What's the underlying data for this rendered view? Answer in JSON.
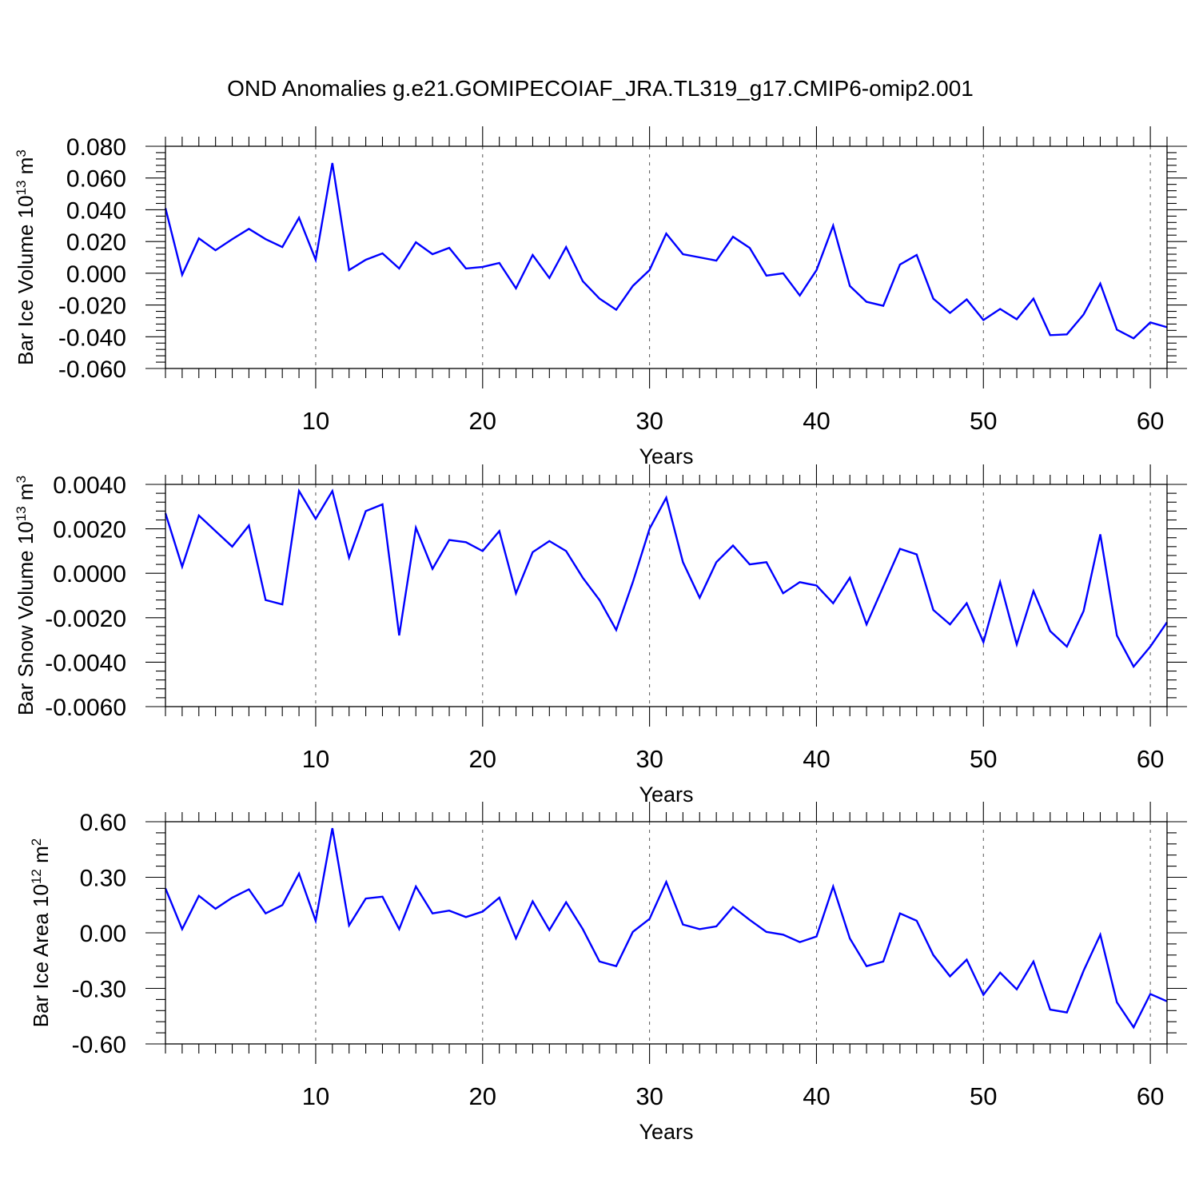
{
  "title": "OND Anomalies g.e21.GOMIPECOIAF_JRA.TL319_g17.CMIP6-omip2.001",
  "line_color": "#0000ff",
  "chart_data": [
    {
      "type": "line",
      "ylabel": "Bar Ice Volume 10",
      "ylabel_exp": "13",
      "ylabel_unit": " m",
      "ylabel_unit_exp": "3",
      "xlabel": "Years",
      "xlim": [
        1,
        61
      ],
      "ylim": [
        -0.06,
        0.08
      ],
      "xticks": [
        10,
        20,
        30,
        40,
        50,
        60
      ],
      "yticks": [
        -0.06,
        -0.04,
        -0.02,
        0.0,
        0.02,
        0.04,
        0.06,
        0.08
      ],
      "ytick_labels": [
        "-0.060",
        "-0.040",
        "-0.020",
        "0.000",
        "0.020",
        "0.040",
        "0.060",
        "0.080"
      ],
      "grid": "dashed vertical lines at x tick positions",
      "x": [
        1,
        2,
        3,
        4,
        5,
        6,
        7,
        8,
        9,
        10,
        11,
        12,
        13,
        14,
        15,
        16,
        17,
        18,
        19,
        20,
        21,
        22,
        23,
        24,
        25,
        26,
        27,
        28,
        29,
        30,
        31,
        32,
        33,
        34,
        35,
        36,
        37,
        38,
        39,
        40,
        41,
        42,
        43,
        44,
        45,
        46,
        47,
        48,
        49,
        50,
        51,
        52,
        53,
        54,
        55,
        56,
        57,
        58,
        59,
        60,
        61
      ],
      "values": [
        0.041,
        -0.001,
        0.022,
        0.0145,
        0.0215,
        0.028,
        0.0215,
        0.0165,
        0.035,
        0.0085,
        0.0695,
        0.002,
        0.0085,
        0.0125,
        0.003,
        0.0195,
        0.012,
        0.016,
        0.003,
        0.004,
        0.0065,
        -0.0095,
        0.0115,
        -0.003,
        0.0165,
        -0.005,
        -0.016,
        -0.023,
        -0.008,
        0.002,
        0.025,
        0.012,
        0.01,
        0.008,
        0.023,
        0.016,
        -0.0015,
        0.0,
        -0.014,
        0.002,
        0.03,
        -0.008,
        -0.018,
        -0.0205,
        0.0055,
        0.0115,
        -0.016,
        -0.025,
        -0.0165,
        -0.0295,
        -0.0225,
        -0.029,
        -0.016,
        -0.039,
        -0.0385,
        -0.026,
        -0.0065,
        -0.0355,
        -0.041,
        -0.031,
        -0.034
      ]
    },
    {
      "type": "line",
      "ylabel": "Bar Snow Volume 10",
      "ylabel_exp": "13",
      "ylabel_unit": " m",
      "ylabel_unit_exp": "3",
      "xlabel": "Years",
      "xlim": [
        1,
        61
      ],
      "ylim": [
        -0.006,
        0.004
      ],
      "xticks": [
        10,
        20,
        30,
        40,
        50,
        60
      ],
      "yticks": [
        -0.006,
        -0.004,
        -0.002,
        0.0,
        0.002,
        0.004
      ],
      "ytick_labels": [
        "-0.0060",
        "-0.0040",
        "-0.0020",
        "0.0000",
        "0.0020",
        "0.0040"
      ],
      "grid": "dashed vertical lines at x tick positions",
      "x": [
        1,
        2,
        3,
        4,
        5,
        6,
        7,
        8,
        9,
        10,
        11,
        12,
        13,
        14,
        15,
        16,
        17,
        18,
        19,
        20,
        21,
        22,
        23,
        24,
        25,
        26,
        27,
        28,
        29,
        30,
        31,
        32,
        33,
        34,
        35,
        36,
        37,
        38,
        39,
        40,
        41,
        42,
        43,
        44,
        45,
        46,
        47,
        48,
        49,
        50,
        51,
        52,
        53,
        54,
        55,
        56,
        57,
        58,
        59,
        60,
        61
      ],
      "values": [
        0.0027,
        0.0003,
        0.0026,
        0.0019,
        0.0012,
        0.00215,
        -0.0012,
        -0.0014,
        0.0037,
        0.00245,
        0.0037,
        0.0007,
        0.0028,
        0.0031,
        -0.0028,
        0.00205,
        0.0002,
        0.0015,
        0.0014,
        0.001,
        0.0019,
        -0.0009,
        0.00095,
        0.00145,
        0.001,
        -0.0002,
        -0.0012,
        -0.00255,
        -0.0004,
        0.002,
        0.0034,
        0.0005,
        -0.0011,
        0.0005,
        0.00125,
        0.0004,
        0.0005,
        -0.0009,
        -0.0004,
        -0.00055,
        -0.00135,
        -0.0002,
        -0.0023,
        -0.0006,
        0.0011,
        0.00085,
        -0.00165,
        -0.0023,
        -0.00135,
        -0.0031,
        -0.0004,
        -0.0032,
        -0.0008,
        -0.0026,
        -0.0033,
        -0.0017,
        0.00175,
        -0.0028,
        -0.0042,
        -0.0033,
        -0.0022
      ]
    },
    {
      "type": "line",
      "ylabel": "Bar Ice Area 10",
      "ylabel_exp": "12",
      "ylabel_unit": " m",
      "ylabel_unit_exp": "2",
      "xlabel": "Years",
      "xlim": [
        1,
        61
      ],
      "ylim": [
        -0.6,
        0.6
      ],
      "xticks": [
        10,
        20,
        30,
        40,
        50,
        60
      ],
      "yticks": [
        -0.6,
        -0.3,
        0.0,
        0.3,
        0.6
      ],
      "ytick_labels": [
        "-0.60",
        "-0.30",
        "0.00",
        "0.30",
        "0.60"
      ],
      "grid": "dashed vertical lines at x tick positions",
      "x": [
        1,
        2,
        3,
        4,
        5,
        6,
        7,
        8,
        9,
        10,
        11,
        12,
        13,
        14,
        15,
        16,
        17,
        18,
        19,
        20,
        21,
        22,
        23,
        24,
        25,
        26,
        27,
        28,
        29,
        30,
        31,
        32,
        33,
        34,
        35,
        36,
        37,
        38,
        39,
        40,
        41,
        42,
        43,
        44,
        45,
        46,
        47,
        48,
        49,
        50,
        51,
        52,
        53,
        54,
        55,
        56,
        57,
        58,
        59,
        60,
        61
      ],
      "values": [
        0.24,
        0.02,
        0.2,
        0.13,
        0.19,
        0.235,
        0.105,
        0.15,
        0.32,
        0.065,
        0.565,
        0.04,
        0.185,
        0.195,
        0.02,
        0.25,
        0.105,
        0.12,
        0.085,
        0.115,
        0.19,
        -0.03,
        0.17,
        0.015,
        0.165,
        0.02,
        -0.155,
        -0.18,
        0.005,
        0.075,
        0.275,
        0.045,
        0.02,
        0.035,
        0.14,
        0.07,
        0.005,
        -0.01,
        -0.05,
        -0.02,
        0.25,
        -0.03,
        -0.18,
        -0.155,
        0.105,
        0.065,
        -0.12,
        -0.235,
        -0.145,
        -0.335,
        -0.215,
        -0.305,
        -0.155,
        -0.415,
        -0.43,
        -0.205,
        -0.01,
        -0.375,
        -0.51,
        -0.33,
        -0.37
      ]
    }
  ]
}
